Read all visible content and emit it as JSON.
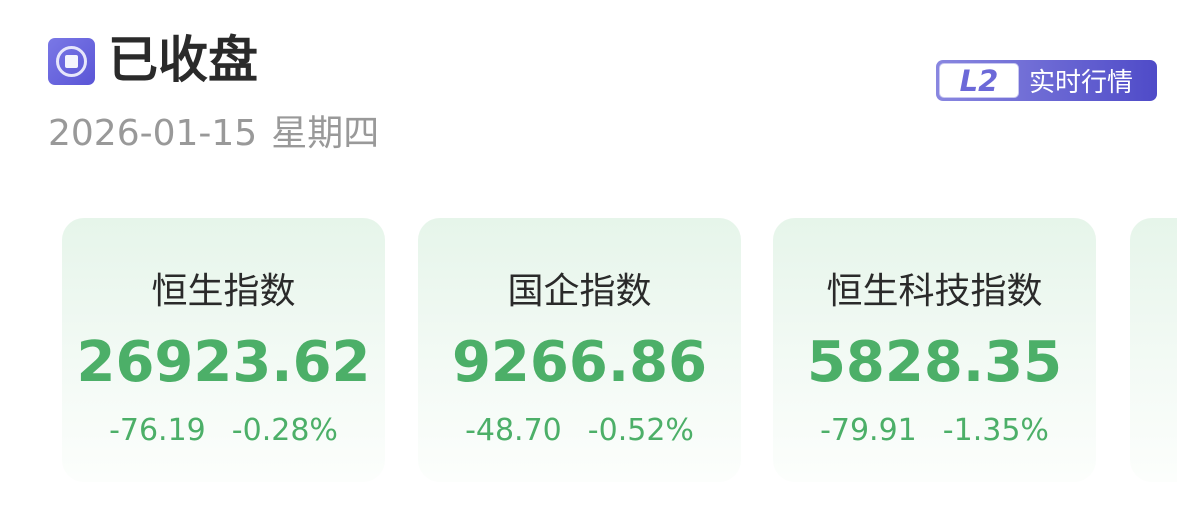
{
  "header": {
    "status": "已收盘",
    "date": "2026-01-15",
    "weekday": "星期四",
    "status_icon": "market-closed-icon"
  },
  "badge": {
    "level": "L2",
    "label": "实时行情",
    "color": "#5a55d6"
  },
  "colors": {
    "down": "#4caf68"
  },
  "indices": [
    {
      "name": "恒生指数",
      "value": "26923.62",
      "change": "-76.19",
      "percent": "-0.28%"
    },
    {
      "name": "国企指数",
      "value": "9266.86",
      "change": "-48.70",
      "percent": "-0.52%"
    },
    {
      "name": "恒生科技指数",
      "value": "5828.35",
      "change": "-79.91",
      "percent": "-1.35%"
    }
  ]
}
